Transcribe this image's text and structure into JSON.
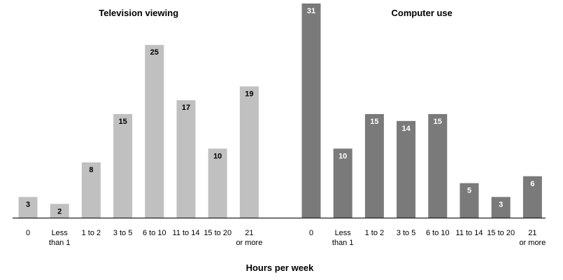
{
  "chart_data": [
    {
      "type": "bar",
      "title": "Television viewing",
      "categories": [
        "0",
        "Less than 1",
        "1 to 2",
        "3 to 5",
        "6 to 10",
        "11 to 14",
        "15 to 20",
        "21 or more"
      ],
      "values": [
        3,
        2,
        8,
        15,
        25,
        17,
        10,
        19
      ],
      "color": "#c0c0c0",
      "label_color": "#000000",
      "ylim": [
        0,
        31
      ]
    },
    {
      "type": "bar",
      "title": "Computer use",
      "categories": [
        "0",
        "Less than 1",
        "1 to 2",
        "3 to 5",
        "6 to 10",
        "11 to 14",
        "15 to 20",
        "21 or more"
      ],
      "values": [
        31,
        10,
        15,
        14,
        15,
        5,
        3,
        6
      ],
      "color": "#7a7a7a",
      "label_color": "#ffffff",
      "ylim": [
        0,
        31
      ]
    }
  ],
  "xlabel": "Hours per week",
  "baseline_color": "#222222"
}
